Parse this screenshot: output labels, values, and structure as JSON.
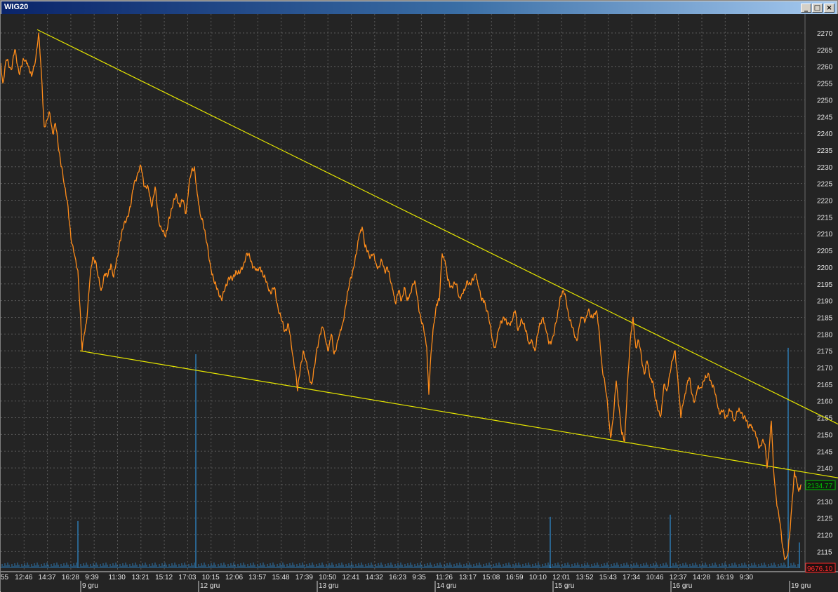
{
  "window": {
    "title": "WIG20",
    "buttons": {
      "minimize": "_",
      "maximize": "□",
      "close": "×"
    }
  },
  "colors": {
    "background": "#242424",
    "grid": "#5a5a5a",
    "price_line": "#ff8c1a",
    "trend_lines": "#e6e600",
    "volume": "#2e8fd6",
    "last_price_box": "#00c000",
    "last_volume_box": "#ff2a2a"
  },
  "chart_data": {
    "type": "line",
    "instrument": "WIG20",
    "ylim": [
      2110,
      2272
    ],
    "y_ticks": [
      2115,
      2120,
      2125,
      2130,
      2135,
      2140,
      2145,
      2150,
      2155,
      2160,
      2165,
      2170,
      2175,
      2180,
      2185,
      2190,
      2195,
      2200,
      2205,
      2210,
      2215,
      2220,
      2225,
      2230,
      2235,
      2240,
      2245,
      2250,
      2255,
      2260,
      2265,
      2270
    ],
    "x_time_labels": [
      "55",
      "12:46",
      "14:37",
      "16:28",
      "9:39",
      "11:30",
      "13:21",
      "15:12",
      "17:03",
      "10:15",
      "12:06",
      "13:57",
      "15:48",
      "17:39",
      "10:50",
      "12:41",
      "14:32",
      "16:23",
      "9:35",
      "11:26",
      "13:17",
      "15:08",
      "16:59",
      "10:10",
      "12:01",
      "13:52",
      "15:43",
      "17:34",
      "10:46",
      "12:37",
      "14:28",
      "16:19",
      "9:30"
    ],
    "x_date_labels": [
      "9 gru",
      "12 gru",
      "13 gru",
      "14 gru",
      "15 gru",
      "16 gru",
      "19 gru"
    ],
    "last_price": "2134.77",
    "last_volume": "9676.10",
    "price_series": [
      {
        "i": 0,
        "v": 2261
      },
      {
        "i": 3,
        "v": 2255
      },
      {
        "i": 8,
        "v": 2262
      },
      {
        "i": 15,
        "v": 2259
      },
      {
        "i": 20,
        "v": 2265
      },
      {
        "i": 26,
        "v": 2258
      },
      {
        "i": 33,
        "v": 2262
      },
      {
        "i": 38,
        "v": 2261
      },
      {
        "i": 44,
        "v": 2257
      },
      {
        "i": 49,
        "v": 2261
      },
      {
        "i": 54,
        "v": 2270
      },
      {
        "i": 58,
        "v": 2258
      },
      {
        "i": 62,
        "v": 2242
      },
      {
        "i": 66,
        "v": 2244
      },
      {
        "i": 70,
        "v": 2246
      },
      {
        "i": 74,
        "v": 2240
      },
      {
        "i": 78,
        "v": 2243
      },
      {
        "i": 82,
        "v": 2236
      },
      {
        "i": 87,
        "v": 2230
      },
      {
        "i": 91,
        "v": 2224
      },
      {
        "i": 96,
        "v": 2218
      },
      {
        "i": 101,
        "v": 2207
      },
      {
        "i": 106,
        "v": 2203
      },
      {
        "i": 110,
        "v": 2199
      },
      {
        "i": 113,
        "v": 2188
      },
      {
        "i": 116,
        "v": 2175
      },
      {
        "i": 119,
        "v": 2180
      },
      {
        "i": 123,
        "v": 2185
      },
      {
        "i": 127,
        "v": 2196
      },
      {
        "i": 131,
        "v": 2203
      },
      {
        "i": 135,
        "v": 2202
      },
      {
        "i": 139,
        "v": 2197
      },
      {
        "i": 143,
        "v": 2193
      },
      {
        "i": 148,
        "v": 2198
      },
      {
        "i": 152,
        "v": 2197
      },
      {
        "i": 157,
        "v": 2201
      },
      {
        "i": 161,
        "v": 2197
      },
      {
        "i": 166,
        "v": 2203
      },
      {
        "i": 170,
        "v": 2208
      },
      {
        "i": 175,
        "v": 2212
      },
      {
        "i": 180,
        "v": 2215
      },
      {
        "i": 185,
        "v": 2218
      },
      {
        "i": 190,
        "v": 2225
      },
      {
        "i": 195,
        "v": 2228
      },
      {
        "i": 200,
        "v": 2230
      },
      {
        "i": 205,
        "v": 2224
      },
      {
        "i": 210,
        "v": 2224
      },
      {
        "i": 215,
        "v": 2218
      },
      {
        "i": 220,
        "v": 2224
      },
      {
        "i": 225,
        "v": 2214
      },
      {
        "i": 230,
        "v": 2211
      },
      {
        "i": 235,
        "v": 2209
      },
      {
        "i": 240,
        "v": 2215
      },
      {
        "i": 245,
        "v": 2218
      },
      {
        "i": 250,
        "v": 2222
      },
      {
        "i": 255,
        "v": 2218
      },
      {
        "i": 260,
        "v": 2220
      },
      {
        "i": 264,
        "v": 2216
      },
      {
        "i": 268,
        "v": 2224
      },
      {
        "i": 272,
        "v": 2229
      },
      {
        "i": 276,
        "v": 2230
      },
      {
        "i": 280,
        "v": 2222
      },
      {
        "i": 284,
        "v": 2216
      },
      {
        "i": 288,
        "v": 2214
      },
      {
        "i": 292,
        "v": 2209
      },
      {
        "i": 296,
        "v": 2204
      },
      {
        "i": 300,
        "v": 2199
      },
      {
        "i": 305,
        "v": 2195
      },
      {
        "i": 310,
        "v": 2193
      },
      {
        "i": 315,
        "v": 2190
      },
      {
        "i": 320,
        "v": 2194
      },
      {
        "i": 325,
        "v": 2197
      },
      {
        "i": 330,
        "v": 2196
      },
      {
        "i": 335,
        "v": 2199
      },
      {
        "i": 340,
        "v": 2198
      },
      {
        "i": 345,
        "v": 2200
      },
      {
        "i": 350,
        "v": 2204
      },
      {
        "i": 355,
        "v": 2203
      },
      {
        "i": 360,
        "v": 2200
      },
      {
        "i": 365,
        "v": 2199
      },
      {
        "i": 370,
        "v": 2200
      },
      {
        "i": 375,
        "v": 2197
      },
      {
        "i": 380,
        "v": 2195
      },
      {
        "i": 385,
        "v": 2192
      },
      {
        "i": 390,
        "v": 2194
      },
      {
        "i": 395,
        "v": 2188
      },
      {
        "i": 400,
        "v": 2184
      },
      {
        "i": 405,
        "v": 2181
      },
      {
        "i": 410,
        "v": 2183
      },
      {
        "i": 415,
        "v": 2175
      },
      {
        "i": 420,
        "v": 2169
      },
      {
        "i": 423,
        "v": 2163
      },
      {
        "i": 427,
        "v": 2170
      },
      {
        "i": 431,
        "v": 2175
      },
      {
        "i": 435,
        "v": 2172
      },
      {
        "i": 439,
        "v": 2168
      },
      {
        "i": 443,
        "v": 2165
      },
      {
        "i": 447,
        "v": 2170
      },
      {
        "i": 451,
        "v": 2176
      },
      {
        "i": 455,
        "v": 2180
      },
      {
        "i": 459,
        "v": 2182
      },
      {
        "i": 463,
        "v": 2178
      },
      {
        "i": 467,
        "v": 2175
      },
      {
        "i": 471,
        "v": 2180
      },
      {
        "i": 475,
        "v": 2174
      },
      {
        "i": 479,
        "v": 2177
      },
      {
        "i": 483,
        "v": 2180
      },
      {
        "i": 487,
        "v": 2183
      },
      {
        "i": 491,
        "v": 2188
      },
      {
        "i": 495,
        "v": 2193
      },
      {
        "i": 499,
        "v": 2197
      },
      {
        "i": 503,
        "v": 2200
      },
      {
        "i": 507,
        "v": 2204
      },
      {
        "i": 511,
        "v": 2210
      },
      {
        "i": 515,
        "v": 2212
      },
      {
        "i": 519,
        "v": 2206
      },
      {
        "i": 523,
        "v": 2205
      },
      {
        "i": 527,
        "v": 2203
      },
      {
        "i": 531,
        "v": 2204
      },
      {
        "i": 535,
        "v": 2201
      },
      {
        "i": 539,
        "v": 2200
      },
      {
        "i": 543,
        "v": 2202
      },
      {
        "i": 547,
        "v": 2199
      },
      {
        "i": 551,
        "v": 2200
      },
      {
        "i": 555,
        "v": 2196
      },
      {
        "i": 559,
        "v": 2193
      },
      {
        "i": 563,
        "v": 2189
      },
      {
        "i": 567,
        "v": 2193
      },
      {
        "i": 571,
        "v": 2190
      },
      {
        "i": 575,
        "v": 2194
      },
      {
        "i": 579,
        "v": 2190
      },
      {
        "i": 583,
        "v": 2192
      },
      {
        "i": 587,
        "v": 2195
      },
      {
        "i": 591,
        "v": 2195
      },
      {
        "i": 595,
        "v": 2189
      },
      {
        "i": 599,
        "v": 2184
      },
      {
        "i": 603,
        "v": 2181
      },
      {
        "i": 607,
        "v": 2176
      },
      {
        "i": 610,
        "v": 2162
      },
      {
        "i": 613,
        "v": 2174
      },
      {
        "i": 617,
        "v": 2183
      },
      {
        "i": 621,
        "v": 2189
      },
      {
        "i": 625,
        "v": 2190
      },
      {
        "i": 629,
        "v": 2204
      },
      {
        "i": 633,
        "v": 2202
      },
      {
        "i": 637,
        "v": 2196
      },
      {
        "i": 641,
        "v": 2194
      },
      {
        "i": 645,
        "v": 2195
      },
      {
        "i": 649,
        "v": 2195
      },
      {
        "i": 653,
        "v": 2191
      },
      {
        "i": 657,
        "v": 2192
      },
      {
        "i": 661,
        "v": 2193
      },
      {
        "i": 665,
        "v": 2196
      },
      {
        "i": 669,
        "v": 2195
      },
      {
        "i": 673,
        "v": 2196
      },
      {
        "i": 677,
        "v": 2198
      },
      {
        "i": 681,
        "v": 2194
      },
      {
        "i": 685,
        "v": 2190
      },
      {
        "i": 689,
        "v": 2190
      },
      {
        "i": 693,
        "v": 2187
      },
      {
        "i": 697,
        "v": 2183
      },
      {
        "i": 701,
        "v": 2178
      },
      {
        "i": 705,
        "v": 2176
      },
      {
        "i": 709,
        "v": 2181
      },
      {
        "i": 713,
        "v": 2184
      },
      {
        "i": 717,
        "v": 2185
      },
      {
        "i": 721,
        "v": 2183
      },
      {
        "i": 725,
        "v": 2183
      },
      {
        "i": 729,
        "v": 2184
      },
      {
        "i": 733,
        "v": 2187
      },
      {
        "i": 737,
        "v": 2181
      },
      {
        "i": 741,
        "v": 2184
      },
      {
        "i": 745,
        "v": 2183
      },
      {
        "i": 749,
        "v": 2181
      },
      {
        "i": 753,
        "v": 2177
      },
      {
        "i": 757,
        "v": 2178
      },
      {
        "i": 761,
        "v": 2175
      },
      {
        "i": 765,
        "v": 2180
      },
      {
        "i": 769,
        "v": 2183
      },
      {
        "i": 773,
        "v": 2185
      },
      {
        "i": 777,
        "v": 2181
      },
      {
        "i": 781,
        "v": 2177
      },
      {
        "i": 785,
        "v": 2178
      },
      {
        "i": 789,
        "v": 2181
      },
      {
        "i": 793,
        "v": 2185
      },
      {
        "i": 797,
        "v": 2191
      },
      {
        "i": 801,
        "v": 2193
      },
      {
        "i": 805,
        "v": 2191
      },
      {
        "i": 809,
        "v": 2186
      },
      {
        "i": 813,
        "v": 2183
      },
      {
        "i": 817,
        "v": 2180
      },
      {
        "i": 821,
        "v": 2178
      },
      {
        "i": 825,
        "v": 2183
      },
      {
        "i": 829,
        "v": 2185
      },
      {
        "i": 833,
        "v": 2184
      },
      {
        "i": 837,
        "v": 2187
      },
      {
        "i": 841,
        "v": 2185
      },
      {
        "i": 845,
        "v": 2186
      },
      {
        "i": 849,
        "v": 2187
      },
      {
        "i": 853,
        "v": 2180
      },
      {
        "i": 857,
        "v": 2170
      },
      {
        "i": 861,
        "v": 2165
      },
      {
        "i": 865,
        "v": 2158
      },
      {
        "i": 869,
        "v": 2149
      },
      {
        "i": 873,
        "v": 2155
      },
      {
        "i": 877,
        "v": 2166
      },
      {
        "i": 881,
        "v": 2158
      },
      {
        "i": 885,
        "v": 2150
      },
      {
        "i": 889,
        "v": 2148
      },
      {
        "i": 893,
        "v": 2165
      },
      {
        "i": 897,
        "v": 2178
      },
      {
        "i": 901,
        "v": 2185
      },
      {
        "i": 905,
        "v": 2176
      },
      {
        "i": 909,
        "v": 2178
      },
      {
        "i": 913,
        "v": 2173
      },
      {
        "i": 917,
        "v": 2168
      },
      {
        "i": 921,
        "v": 2172
      },
      {
        "i": 925,
        "v": 2167
      },
      {
        "i": 929,
        "v": 2166
      },
      {
        "i": 933,
        "v": 2160
      },
      {
        "i": 937,
        "v": 2157
      },
      {
        "i": 941,
        "v": 2156
      },
      {
        "i": 945,
        "v": 2165
      },
      {
        "i": 949,
        "v": 2163
      },
      {
        "i": 953,
        "v": 2168
      },
      {
        "i": 957,
        "v": 2172
      },
      {
        "i": 961,
        "v": 2175
      },
      {
        "i": 965,
        "v": 2166
      },
      {
        "i": 969,
        "v": 2155
      },
      {
        "i": 973,
        "v": 2160
      },
      {
        "i": 977,
        "v": 2164
      },
      {
        "i": 981,
        "v": 2167
      },
      {
        "i": 985,
        "v": 2162
      },
      {
        "i": 989,
        "v": 2160
      },
      {
        "i": 993,
        "v": 2164
      },
      {
        "i": 997,
        "v": 2164
      },
      {
        "i": 1001,
        "v": 2166
      },
      {
        "i": 1005,
        "v": 2167
      },
      {
        "i": 1009,
        "v": 2168
      },
      {
        "i": 1013,
        "v": 2165
      },
      {
        "i": 1017,
        "v": 2163
      },
      {
        "i": 1021,
        "v": 2159
      },
      {
        "i": 1025,
        "v": 2156
      },
      {
        "i": 1029,
        "v": 2157
      },
      {
        "i": 1033,
        "v": 2155
      },
      {
        "i": 1037,
        "v": 2157
      },
      {
        "i": 1041,
        "v": 2157
      },
      {
        "i": 1045,
        "v": 2154
      },
      {
        "i": 1049,
        "v": 2157
      },
      {
        "i": 1053,
        "v": 2157
      },
      {
        "i": 1057,
        "v": 2156
      },
      {
        "i": 1061,
        "v": 2155
      },
      {
        "i": 1065,
        "v": 2152
      },
      {
        "i": 1069,
        "v": 2153
      },
      {
        "i": 1073,
        "v": 2151
      },
      {
        "i": 1077,
        "v": 2149
      },
      {
        "i": 1081,
        "v": 2146
      },
      {
        "i": 1085,
        "v": 2148
      },
      {
        "i": 1089,
        "v": 2147
      },
      {
        "i": 1092,
        "v": 2140
      },
      {
        "i": 1095,
        "v": 2146
      },
      {
        "i": 1098,
        "v": 2154
      },
      {
        "i": 1101,
        "v": 2140
      },
      {
        "i": 1104,
        "v": 2133
      },
      {
        "i": 1107,
        "v": 2128
      },
      {
        "i": 1110,
        "v": 2124
      },
      {
        "i": 1113,
        "v": 2118
      },
      {
        "i": 1116,
        "v": 2114
      },
      {
        "i": 1119,
        "v": 2113
      },
      {
        "i": 1122,
        "v": 2115
      },
      {
        "i": 1125,
        "v": 2122
      },
      {
        "i": 1128,
        "v": 2131
      },
      {
        "i": 1131,
        "v": 2139
      },
      {
        "i": 1134,
        "v": 2136
      },
      {
        "i": 1137,
        "v": 2133
      },
      {
        "i": 1140,
        "v": 2135
      }
    ],
    "volume_spikes": [
      {
        "i": 110,
        "v": 0.22
      },
      {
        "i": 278,
        "v": 1.0
      },
      {
        "i": 783,
        "v": 0.24
      },
      {
        "i": 954,
        "v": 0.25
      },
      {
        "i": 1122,
        "v": 1.03
      },
      {
        "i": 1138,
        "v": 0.12
      }
    ],
    "trend_lines": [
      {
        "from": {
          "i": 52,
          "v": 2271
        },
        "to": {
          "i": 1194,
          "v": 2153
        }
      },
      {
        "from": {
          "i": 113,
          "v": 2175
        },
        "to": {
          "i": 1194,
          "v": 2137
        }
      }
    ]
  }
}
